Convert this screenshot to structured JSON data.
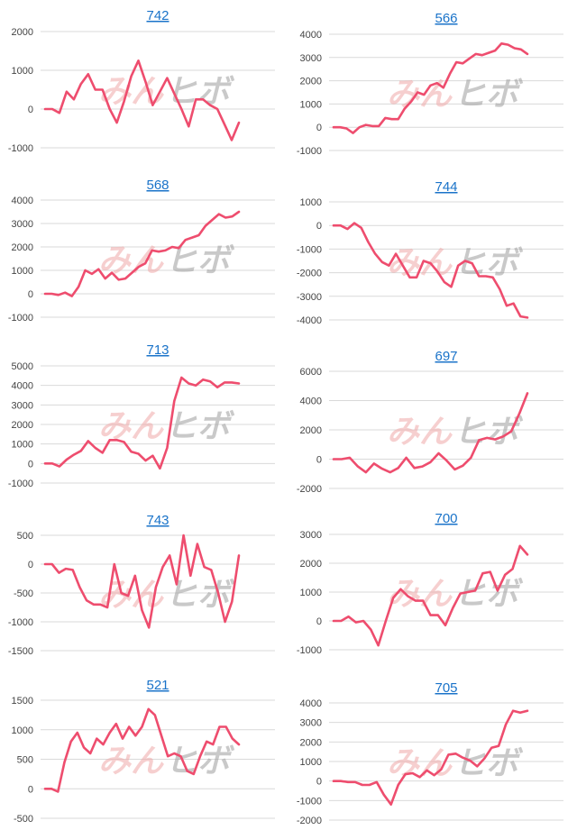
{
  "watermark": {
    "part1": "みん",
    "part2": "ヒボ"
  },
  "colors": {
    "series": "#ee4d6e",
    "title": "#1a73c9",
    "grid": "#d9d9d9"
  },
  "chart_data": [
    {
      "type": "line",
      "title": "742",
      "ylim": [
        -1000,
        2000
      ],
      "yticks": [
        2000,
        1000,
        0,
        -1000
      ],
      "values": [
        0,
        0,
        -100,
        450,
        250,
        650,
        900,
        500,
        500,
        0,
        -350,
        200,
        850,
        1250,
        700,
        100,
        450,
        800,
        400,
        0,
        -450,
        250,
        250,
        100,
        0,
        -400,
        -800,
        -350
      ]
    },
    {
      "type": "line",
      "title": "566",
      "ylim": [
        -1000,
        4000
      ],
      "yticks": [
        4000,
        3000,
        2000,
        1000,
        0,
        -1000
      ],
      "values": [
        0,
        0,
        -50,
        -250,
        0,
        100,
        50,
        50,
        400,
        350,
        350,
        800,
        1100,
        1500,
        1400,
        1800,
        1900,
        1700,
        2300,
        2800,
        2750,
        2950,
        3150,
        3100,
        3200,
        3300,
        3600,
        3550,
        3400,
        3350,
        3150
      ]
    },
    {
      "type": "line",
      "title": "744",
      "ylim": [
        -4000,
        1000
      ],
      "yticks": [
        1000,
        0,
        -1000,
        -2000,
        -3000,
        -4000
      ],
      "values": [
        0,
        0,
        -150,
        100,
        -100,
        -700,
        -1200,
        -1550,
        -1700,
        -1200,
        -1700,
        -2200,
        -2200,
        -1500,
        -1600,
        -1950,
        -2400,
        -2600,
        -1700,
        -1500,
        -1600,
        -2150,
        -2150,
        -2200,
        -2700,
        -3400,
        -3300,
        -3850,
        -3900
      ]
    },
    {
      "type": "line",
      "title": "568",
      "ylim": [
        -1000,
        4000
      ],
      "yticks": [
        4000,
        3000,
        2000,
        1000,
        0,
        -1000
      ],
      "values": [
        0,
        0,
        -50,
        50,
        -100,
        300,
        1000,
        850,
        1050,
        650,
        900,
        600,
        650,
        900,
        1150,
        1300,
        1850,
        1800,
        1850,
        2000,
        1950,
        2300,
        2400,
        2500,
        2900,
        3150,
        3400,
        3250,
        3300,
        3500
      ]
    },
    {
      "type": "line",
      "title": "713",
      "ylim": [
        -1000,
        5000
      ],
      "yticks": [
        5000,
        4000,
        3000,
        2000,
        1000,
        0,
        -1000
      ],
      "values": [
        0,
        0,
        -150,
        200,
        450,
        650,
        1150,
        800,
        550,
        1200,
        1200,
        1100,
        600,
        500,
        150,
        400,
        -250,
        800,
        3200,
        4400,
        4100,
        4000,
        4300,
        4200,
        3900,
        4150,
        4150,
        4100
      ]
    },
    {
      "type": "line",
      "title": "697",
      "ylim": [
        -2000,
        6000
      ],
      "yticks": [
        6000,
        4000,
        2000,
        0,
        -2000
      ],
      "values": [
        0,
        0,
        100,
        -500,
        -900,
        -300,
        -650,
        -900,
        -600,
        100,
        -600,
        -500,
        -200,
        400,
        -100,
        -700,
        -450,
        100,
        1300,
        1450,
        1350,
        1550,
        1900,
        3100,
        4500
      ]
    },
    {
      "type": "line",
      "title": "743",
      "ylim": [
        -1500,
        500
      ],
      "yticks": [
        500,
        0,
        -500,
        -1000,
        -1500
      ],
      "values": [
        0,
        0,
        -150,
        -80,
        -100,
        -400,
        -630,
        -700,
        -700,
        -750,
        0,
        -500,
        -550,
        -200,
        -800,
        -1100,
        -400,
        -50,
        150,
        -350,
        500,
        -200,
        350,
        -50,
        -100,
        -500,
        -1000,
        -650,
        150
      ]
    },
    {
      "type": "line",
      "title": "700",
      "ylim": [
        -1000,
        3000
      ],
      "yticks": [
        3000,
        2000,
        1000,
        0,
        -1000
      ],
      "values": [
        0,
        0,
        150,
        -50,
        0,
        -300,
        -850,
        0,
        800,
        1100,
        850,
        700,
        700,
        200,
        200,
        -150,
        450,
        950,
        1000,
        1050,
        1650,
        1700,
        1050,
        1600,
        1800,
        2600,
        2300
      ]
    },
    {
      "type": "line",
      "title": "521",
      "ylim": [
        -500,
        1500
      ],
      "yticks": [
        1500,
        1000,
        500,
        0,
        -500
      ],
      "values": [
        0,
        0,
        -50,
        450,
        800,
        950,
        700,
        600,
        850,
        750,
        950,
        1100,
        850,
        1050,
        900,
        1050,
        1350,
        1250,
        900,
        550,
        600,
        550,
        300,
        250,
        550,
        800,
        750,
        1050,
        1050,
        850,
        750
      ]
    },
    {
      "type": "line",
      "title": "705",
      "ylim": [
        -2000,
        4000
      ],
      "yticks": [
        4000,
        3000,
        2000,
        1000,
        0,
        -1000,
        -2000
      ],
      "values": [
        0,
        0,
        -50,
        -50,
        -200,
        -200,
        -50,
        -700,
        -1200,
        -200,
        350,
        400,
        200,
        550,
        300,
        600,
        1350,
        1400,
        1200,
        1050,
        750,
        1150,
        1700,
        1800,
        2900,
        3600,
        3500,
        3600
      ]
    }
  ]
}
